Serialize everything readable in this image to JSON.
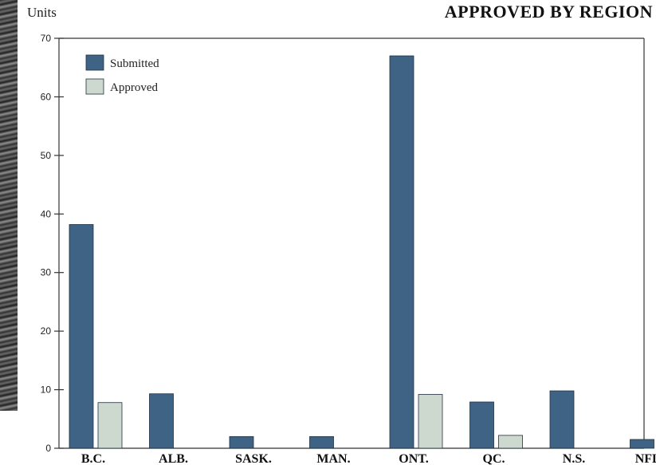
{
  "colors": {
    "submitted": "#3f6385",
    "approved": "#cdd8cf",
    "frame": "#333333"
  },
  "chart_data": {
    "type": "bar",
    "title": "APPROVED  BY REGION",
    "ylabel": "Units",
    "xlabel": "",
    "ylim": [
      0,
      70
    ],
    "yticks": [
      0,
      10,
      20,
      30,
      40,
      50,
      60,
      70
    ],
    "grid": false,
    "legend_position": "top-left",
    "categories": [
      "B.C.",
      "ALB.",
      "SASK.",
      "MAN.",
      "ONT.",
      "QC.",
      "N.S.",
      "NFLD."
    ],
    "series": [
      {
        "name": "Submitted",
        "values": [
          38.2,
          9.3,
          2.0,
          2.0,
          67.0,
          7.9,
          9.8,
          1.5
        ]
      },
      {
        "name": "Approved",
        "values": [
          7.8,
          0,
          0,
          0,
          9.2,
          2.2,
          0,
          0
        ]
      }
    ]
  }
}
